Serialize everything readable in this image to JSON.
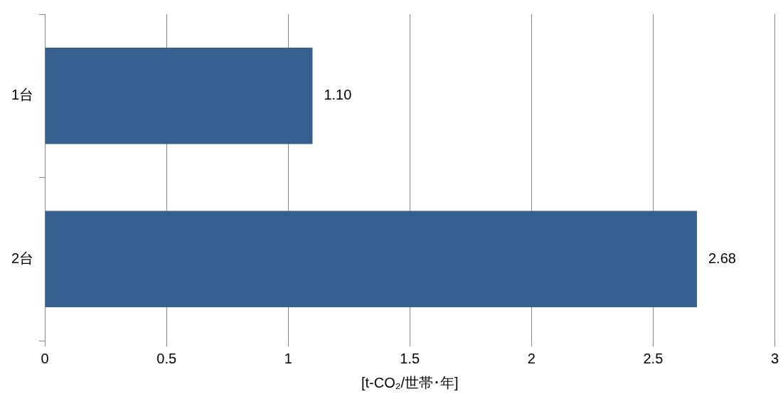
{
  "chart_data": {
    "type": "bar",
    "orientation": "horizontal",
    "categories": [
      "1台",
      "2台"
    ],
    "values": [
      1.1,
      2.68
    ],
    "color": "#35608f",
    "value_labels": [
      "1.10",
      "2.68"
    ],
    "xlabel": "[t-CO₂/世帯･年]",
    "xlim": [
      0,
      3
    ],
    "xticks": [
      0,
      0.5,
      1,
      1.5,
      2,
      2.5,
      3
    ],
    "grid": "x",
    "legend": false
  }
}
